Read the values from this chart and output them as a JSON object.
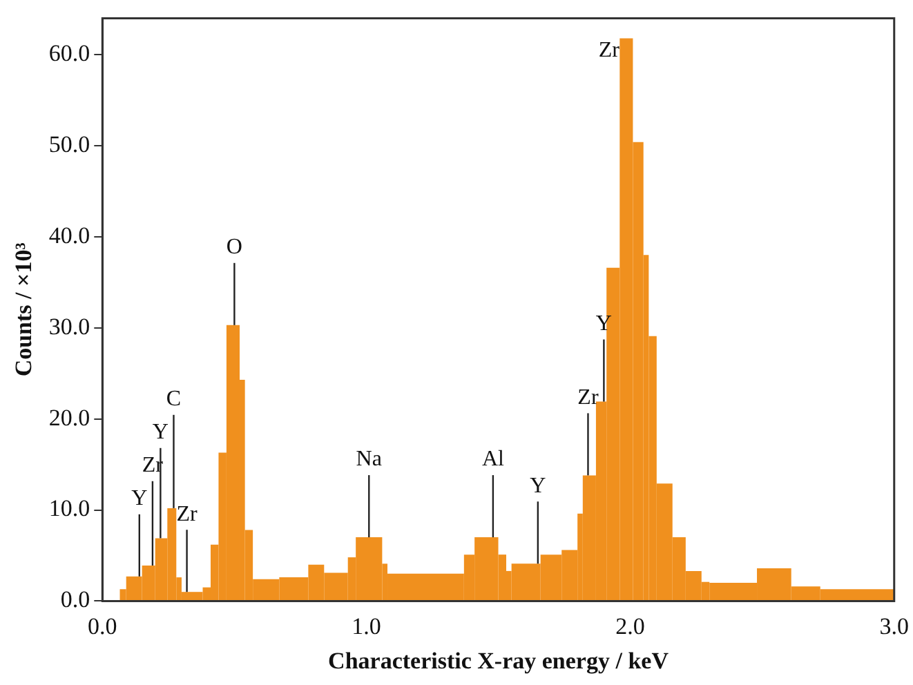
{
  "chart_data": {
    "type": "histogram",
    "xlabel": "Characteristic X-ray energy / keV",
    "ylabel": "Counts / ×10³",
    "bins": [
      0.066,
      0.09,
      0.15,
      0.2,
      0.246,
      0.28,
      0.3,
      0.38,
      0.41,
      0.44,
      0.47,
      0.52,
      0.54,
      0.57,
      0.67,
      0.78,
      0.84,
      0.93,
      0.96,
      1.06,
      1.08,
      1.37,
      1.41,
      1.5,
      1.53,
      1.55,
      1.66,
      1.74,
      1.8,
      1.82,
      1.87,
      1.91,
      1.96,
      2.01,
      2.05,
      2.07,
      2.1,
      2.16,
      2.21,
      2.27,
      2.3,
      2.48,
      2.61,
      2.72,
      3.0
    ],
    "values": [
      1.3,
      2.7,
      3.9,
      6.9,
      10.2,
      2.6,
      1.0,
      1.5,
      6.2,
      16.3,
      30.3,
      24.3,
      7.8,
      2.4,
      2.6,
      4.0,
      3.1,
      4.8,
      7.0,
      4.1,
      3.0,
      5.1,
      7.0,
      5.1,
      3.3,
      4.1,
      5.1,
      5.6,
      9.6,
      13.8,
      21.9,
      36.6,
      61.8,
      50.4,
      38,
      29.1,
      12.9,
      7.0,
      3.3,
      2.1,
      2.0,
      3.6,
      1.6,
      1.3
    ],
    "color": "#f0901e",
    "xlim": [
      0,
      3.0
    ],
    "xticks": [
      {
        "value": 0,
        "label": "0.0"
      },
      {
        "value": 1,
        "label": "1.0"
      },
      {
        "value": 2,
        "label": "2.0"
      },
      {
        "value": 3,
        "label": "3.0"
      }
    ],
    "ylim": [
      0,
      64
    ],
    "yticks": [
      {
        "value": 0,
        "label": "0.0"
      },
      {
        "value": 10,
        "label": "10.0"
      },
      {
        "value": 20,
        "label": "20.0"
      },
      {
        "value": 30,
        "label": "30.0"
      },
      {
        "value": 40,
        "label": "40.0"
      },
      {
        "value": 50,
        "label": "50.0"
      },
      {
        "value": 60,
        "label": "60.0"
      }
    ],
    "grid": false,
    "legend": false,
    "annotations": [
      {
        "text": "Y",
        "x": 0.14,
        "y": 2.7
      },
      {
        "text": "Zr",
        "x": 0.19,
        "y": 3.9
      },
      {
        "text": "Y",
        "x": 0.22,
        "y": 6.9
      },
      {
        "text": "C",
        "x": 0.27,
        "y": 10.2
      },
      {
        "text": "Zr",
        "x": 0.32,
        "y": 1.0
      },
      {
        "text": "O",
        "x": 0.5,
        "y": 30.3
      },
      {
        "text": "Na",
        "x": 1.01,
        "y": 7.0
      },
      {
        "text": "Al",
        "x": 1.48,
        "y": 7.0
      },
      {
        "text": "Y",
        "x": 1.65,
        "y": 4.1
      },
      {
        "text": "Zr",
        "x": 1.84,
        "y": 13.8
      },
      {
        "text": "Y",
        "x": 1.9,
        "y": 21.9
      },
      {
        "text": "Zr",
        "x": 1.98,
        "y": 61.8
      }
    ]
  }
}
